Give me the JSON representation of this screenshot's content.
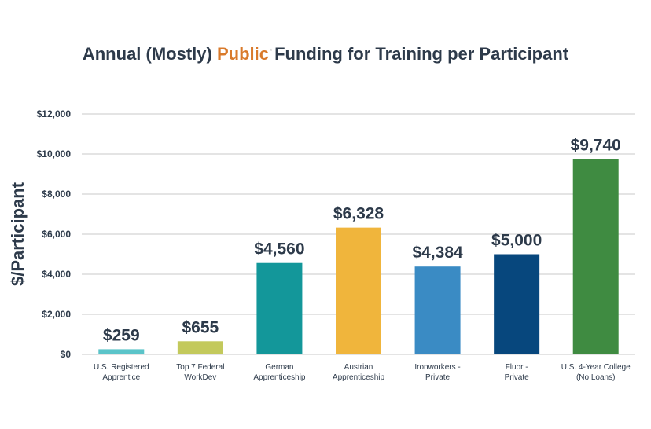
{
  "chart_data": {
    "type": "bar",
    "title_parts": [
      "Annual (Mostly) ",
      "Public",
      "Funding for Training per Participant"
    ],
    "title_mark": "*",
    "title_accent_color": "#d97a2b",
    "ylabel": "$/Participant",
    "xlabel": "",
    "ylim": [
      0,
      12000
    ],
    "yticks": [
      0,
      2000,
      4000,
      6000,
      8000,
      10000,
      12000
    ],
    "ytick_labels": [
      "$0",
      "$2,000",
      "$4,000",
      "$6,000",
      "$8,000",
      "$10,000",
      "$12,000"
    ],
    "grid": true,
    "categories": [
      [
        "U.S. Registered",
        "Apprentice"
      ],
      [
        "Top 7 Federal",
        "WorkDev"
      ],
      [
        "German",
        "Apprenticeship"
      ],
      [
        "Austrian",
        "Apprenticeship"
      ],
      [
        "Ironworkers -",
        "Private"
      ],
      [
        "Fluor -",
        "Private"
      ],
      [
        "U.S. 4-Year College",
        "(No Loans)"
      ]
    ],
    "values": [
      259,
      655,
      4560,
      6328,
      4384,
      5000,
      9740
    ],
    "value_labels": [
      "$259",
      "$655",
      "$4,560",
      "$6,328",
      "$4,384",
      "$5,000",
      "$9,740"
    ],
    "colors": [
      "#5bc4c9",
      "#c3c95c",
      "#13979a",
      "#f0b53c",
      "#3a8bc4",
      "#07477d",
      "#3f8b41"
    ]
  }
}
